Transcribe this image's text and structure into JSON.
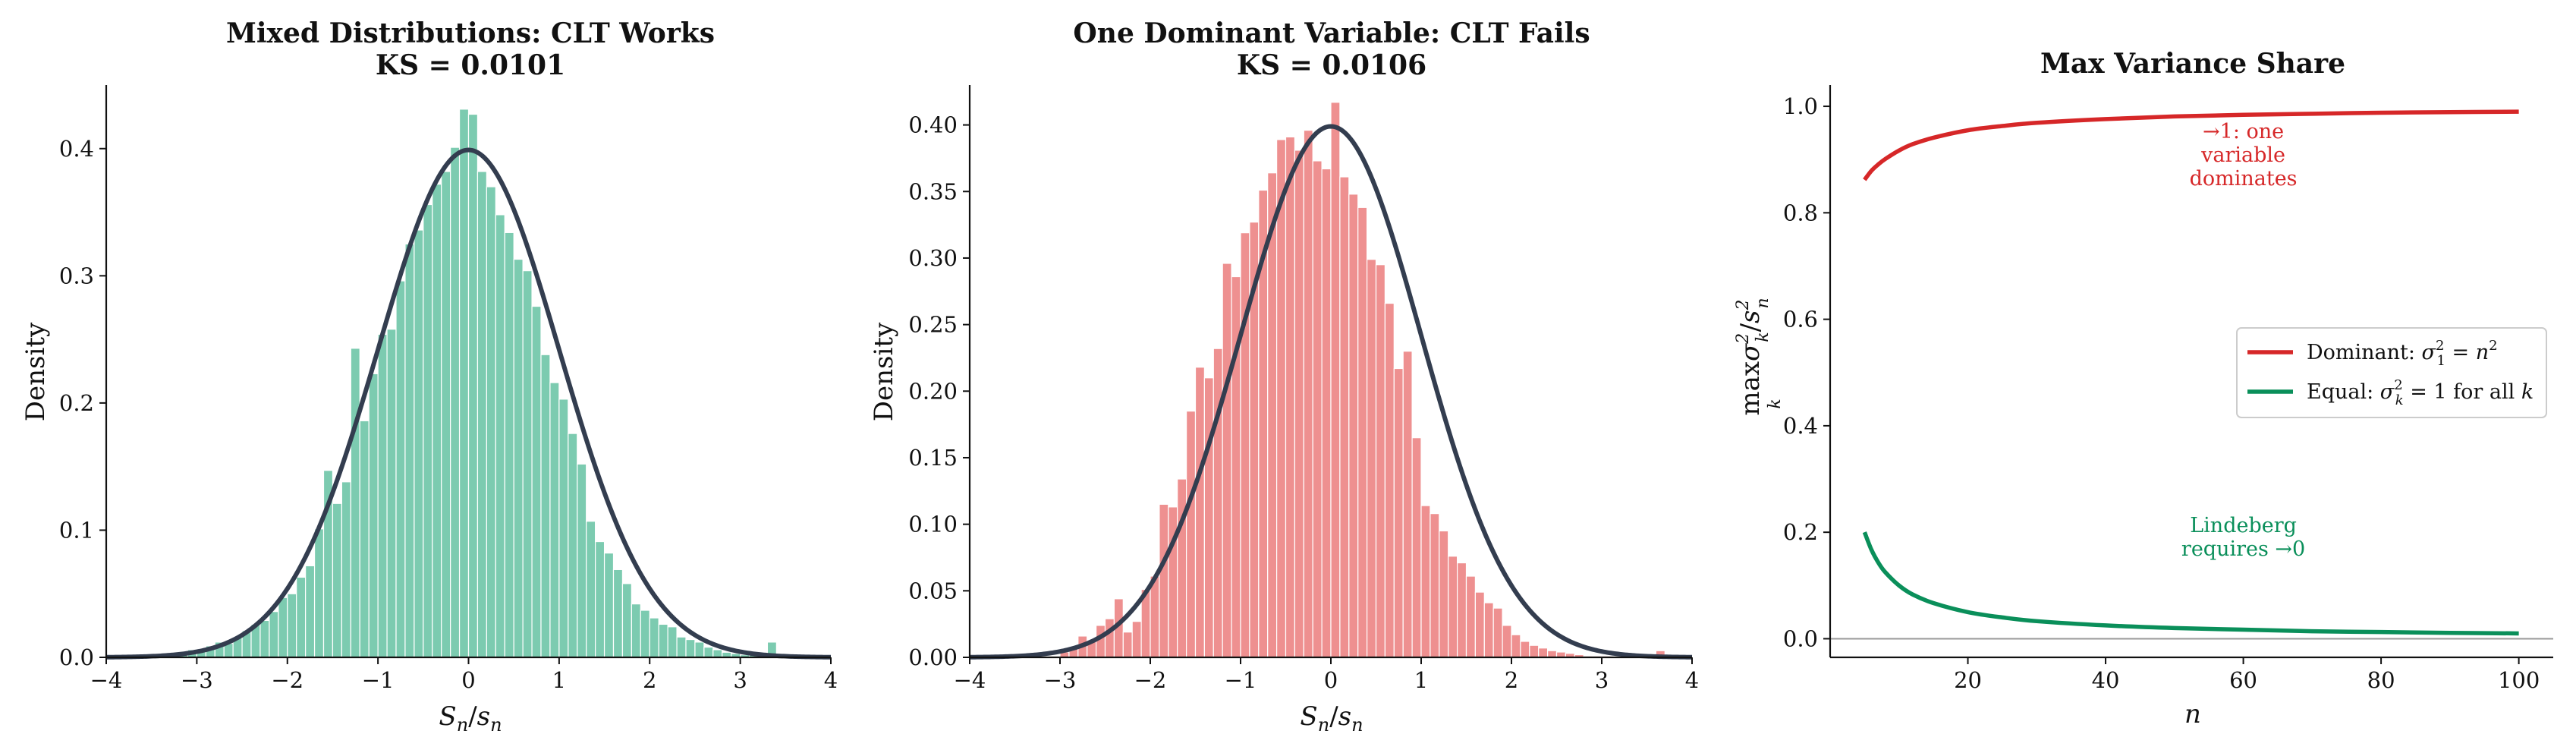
{
  "chart_data": [
    {
      "type": "bar",
      "title": "Mixed Distributions: CLT Works",
      "subtitle": "KS = 0.0101",
      "xlabel": "S_n/s_n",
      "ylabel": "Density",
      "xlim": [
        -4,
        4
      ],
      "ylim": [
        0,
        0.45
      ],
      "xticks": [
        "−4",
        "−3",
        "−2",
        "−1",
        "0",
        "1",
        "2",
        "3",
        "4"
      ],
      "yticks": [
        "0.0",
        "0.1",
        "0.2",
        "0.3",
        "0.4"
      ],
      "ytick_values": [
        0,
        0.1,
        0.2,
        0.3,
        0.4
      ],
      "bar_color": "#7ccbb0",
      "curve_color": "#333d4f",
      "bins": {
        "edges": [
          -3.5,
          -3.4,
          -3.3,
          -3.2,
          -3.1,
          -3.0,
          -2.9,
          -2.8,
          -2.7,
          -2.6,
          -2.5,
          -2.4,
          -2.3,
          -2.2,
          -2.1,
          -2.0,
          -1.9,
          -1.8,
          -1.7,
          -1.6,
          -1.5,
          -1.4,
          -1.3,
          -1.2,
          -1.1,
          -1.0,
          -0.9,
          -0.8,
          -0.7,
          -0.6,
          -0.5,
          -0.4,
          -0.3,
          -0.2,
          -0.1,
          0.0,
          0.1,
          0.2,
          0.3,
          0.4,
          0.5,
          0.6,
          0.7,
          0.8,
          0.9,
          1.0,
          1.1,
          1.2,
          1.3,
          1.4,
          1.5,
          1.6,
          1.7,
          1.8,
          1.9,
          2.0,
          2.1,
          2.2,
          2.3,
          2.4,
          2.5,
          2.6,
          2.7,
          2.8,
          2.9,
          3.0,
          3.1,
          3.2,
          3.3,
          3.4
        ],
        "heights": [
          0.0,
          0.002,
          0.003,
          0.004,
          0.006,
          0.005,
          0.009,
          0.012,
          0.011,
          0.016,
          0.021,
          0.026,
          0.029,
          0.036,
          0.047,
          0.05,
          0.063,
          0.072,
          0.101,
          0.147,
          0.121,
          0.138,
          0.243,
          0.186,
          0.223,
          0.254,
          0.258,
          0.296,
          0.325,
          0.336,
          0.356,
          0.372,
          0.382,
          0.401,
          0.431,
          0.427,
          0.382,
          0.37,
          0.348,
          0.334,
          0.313,
          0.304,
          0.276,
          0.238,
          0.216,
          0.203,
          0.176,
          0.152,
          0.107,
          0.091,
          0.082,
          0.069,
          0.058,
          0.042,
          0.037,
          0.031,
          0.026,
          0.024,
          0.016,
          0.014,
          0.012,
          0.008,
          0.006,
          0.004,
          0.003,
          0.002,
          0.002,
          0.001,
          0.012,
          0.0
        ]
      },
      "curve": "standard normal pdf"
    },
    {
      "type": "bar",
      "title": "One Dominant Variable: CLT Fails",
      "subtitle": "KS = 0.0106",
      "xlabel": "S_n/s_n",
      "ylabel": "Density",
      "xlim": [
        -4,
        4
      ],
      "ylim": [
        0,
        0.43
      ],
      "xticks": [
        "−4",
        "−3",
        "−2",
        "−1",
        "0",
        "1",
        "2",
        "3",
        "4"
      ],
      "yticks": [
        "0.00",
        "0.05",
        "0.10",
        "0.15",
        "0.20",
        "0.25",
        "0.30",
        "0.35",
        "0.40"
      ],
      "ytick_values": [
        0,
        0.05,
        0.1,
        0.15,
        0.2,
        0.25,
        0.3,
        0.35,
        0.4
      ],
      "bar_color": "#ee9090",
      "curve_color": "#333d4f",
      "bins": {
        "edges": [
          -3.0,
          -2.9,
          -2.8,
          -2.7,
          -2.6,
          -2.5,
          -2.4,
          -2.3,
          -2.2,
          -2.1,
          -2.0,
          -1.9,
          -1.8,
          -1.7,
          -1.6,
          -1.5,
          -1.4,
          -1.3,
          -1.2,
          -1.1,
          -1.0,
          -0.9,
          -0.8,
          -0.7,
          -0.6,
          -0.5,
          -0.4,
          -0.3,
          -0.2,
          -0.1,
          0.0,
          0.1,
          0.2,
          0.3,
          0.4,
          0.5,
          0.6,
          0.7,
          0.8,
          0.9,
          1.0,
          1.1,
          1.2,
          1.3,
          1.4,
          1.5,
          1.6,
          1.7,
          1.8,
          1.9,
          2.0,
          2.1,
          2.2,
          2.3,
          2.4,
          2.5,
          2.6,
          2.7,
          2.8,
          2.9,
          3.0,
          3.1,
          3.2,
          3.3,
          3.4,
          3.5,
          3.6
        ],
        "heights": [
          0.004,
          0.008,
          0.016,
          0.013,
          0.024,
          0.029,
          0.044,
          0.019,
          0.027,
          0.051,
          0.061,
          0.115,
          0.113,
          0.134,
          0.185,
          0.218,
          0.21,
          0.232,
          0.296,
          0.286,
          0.319,
          0.327,
          0.351,
          0.364,
          0.389,
          0.391,
          0.381,
          0.396,
          0.373,
          0.367,
          0.417,
          0.361,
          0.348,
          0.338,
          0.299,
          0.295,
          0.266,
          0.217,
          0.23,
          0.165,
          0.114,
          0.108,
          0.095,
          0.076,
          0.071,
          0.061,
          0.049,
          0.041,
          0.037,
          0.024,
          0.017,
          0.012,
          0.009,
          0.007,
          0.005,
          0.004,
          0.003,
          0.002,
          0.001,
          0.001,
          0.001,
          0.0,
          0.0,
          0.0,
          0.0,
          0.0,
          0.005
        ]
      },
      "curve": "standard normal pdf"
    },
    {
      "type": "line",
      "title": "Max Variance Share",
      "xlabel": "n",
      "ylabel": "max_k σ_k²/s_n²",
      "xlim": [
        0,
        105
      ],
      "ylim": [
        -0.035,
        1.04
      ],
      "xticks": [
        "20",
        "40",
        "60",
        "80",
        "100"
      ],
      "xtick_values": [
        20,
        40,
        60,
        80,
        100
      ],
      "yticks": [
        "0.0",
        "0.2",
        "0.4",
        "0.6",
        "0.8",
        "1.0"
      ],
      "ytick_values": [
        0,
        0.2,
        0.4,
        0.6,
        0.8,
        1.0
      ],
      "hline": 0,
      "series": [
        {
          "name": "Dominant: σ₁² = n²",
          "name_parts": [
            "Dominant: ",
            "σ",
            "1",
            "2",
            " = ",
            "n",
            "2"
          ],
          "color": "#d62728",
          "x": [
            5,
            6,
            7,
            8,
            10,
            12,
            15,
            20,
            25,
            30,
            40,
            50,
            60,
            70,
            80,
            90,
            100
          ],
          "y": [
            0.862,
            0.879,
            0.891,
            0.901,
            0.917,
            0.929,
            0.941,
            0.955,
            0.963,
            0.969,
            0.976,
            0.981,
            0.984,
            0.986,
            0.988,
            0.989,
            0.99
          ]
        },
        {
          "name": "Equal: σ_k² = 1 for all k",
          "name_parts": [
            "Equal: ",
            "σ",
            "k",
            "2",
            " = 1 for all ",
            "k"
          ],
          "color": "#0a8f5a",
          "x": [
            5,
            6,
            7,
            8,
            10,
            12,
            15,
            20,
            25,
            30,
            40,
            50,
            60,
            70,
            80,
            90,
            100
          ],
          "y": [
            0.2,
            0.167,
            0.143,
            0.125,
            0.1,
            0.083,
            0.067,
            0.05,
            0.04,
            0.033,
            0.025,
            0.02,
            0.017,
            0.014,
            0.0125,
            0.011,
            0.01
          ]
        }
      ],
      "legend_position": "center-right",
      "annotations": [
        {
          "lines": [
            "→1: one",
            "variable",
            "dominates"
          ],
          "color": "#d62728",
          "at": [
            60,
            0.94
          ]
        },
        {
          "lines": [
            "Lindeberg",
            "requires  →0"
          ],
          "color": "#0a8f5a",
          "at": [
            60,
            0.2
          ]
        }
      ]
    }
  ]
}
